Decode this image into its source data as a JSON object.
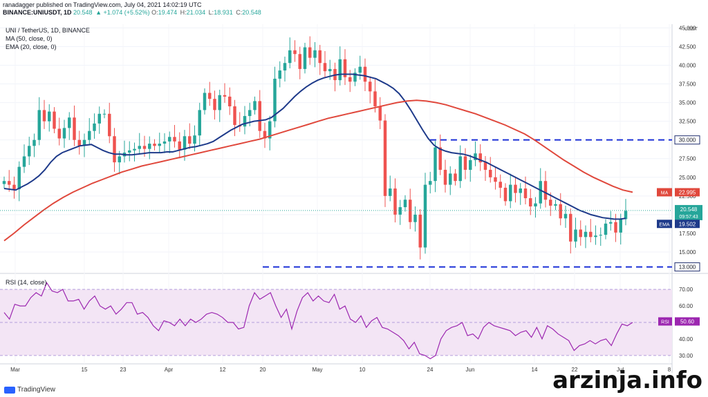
{
  "header": {
    "line1": "ranadagger published on TradingView.com, July 04, 2021 14:02:19 UTC",
    "symbol": "BINANCE:UNIUSDT, 1D",
    "last": "20.548",
    "change": "▲ +1.074 (+5.52%)",
    "o_label": "O:",
    "o": "19.474",
    "h_label": "H:",
    "h": "21.034",
    "l_label": "L:",
    "l": "18.931",
    "c_label": "C:",
    "c": "20.548"
  },
  "legend": {
    "title": "UNI / TetherUS, 1D, BINANCE",
    "ma": "MA (50, close, 0)",
    "ema": "EMA (20, close, 0)",
    "rsi": "RSI (14, close)"
  },
  "footer": {
    "tradingview": "TradingView",
    "watermark": "arzinja.info"
  },
  "colors": {
    "up": "#26a69a",
    "down": "#ef5350",
    "ema": "#1e3a8a",
    "ma": "#e0483c",
    "level": "#1a2fd6",
    "rsi": "#9c27b0",
    "rsi_band": "#f3e5f5"
  },
  "chart_data": [
    {
      "type": "candlestick",
      "title": "UNI / TetherUS, 1D, BINANCE",
      "currency_label": "USDT",
      "yticks": [
        15.0,
        17.5,
        20.0,
        22.5,
        25.0,
        27.5,
        30.0,
        32.5,
        35.0,
        37.5,
        40.0,
        42.5,
        45.0
      ],
      "ylim": [
        12.5,
        45.5
      ],
      "xticks": [
        "Mar",
        "15",
        "23",
        "Apr",
        "12",
        "20",
        "May",
        "10",
        "24",
        "Jun",
        "14",
        "22",
        "Jul",
        "8"
      ],
      "close": [
        24.5,
        24.0,
        23.4,
        26.4,
        27.8,
        29.2,
        30.0,
        34.0,
        32.5,
        33.8,
        31.5,
        30.2,
        31.6,
        33.0,
        30.0,
        29.2,
        30.0,
        31.2,
        32.2,
        33.5,
        33.5,
        30.5,
        27.0,
        27.8,
        28.3,
        28.6,
        28.8,
        29.2,
        28.8,
        29.5,
        29.2,
        29.5,
        29.8,
        30.4,
        29.8,
        28.7,
        30.5,
        29.5,
        30.6,
        34.0,
        36.3,
        35.5,
        34.0,
        36.0,
        35.8,
        34.5,
        32.0,
        31.8,
        33.2,
        34.0,
        35.2,
        31.2,
        30.2,
        32.5,
        38.2,
        39.3,
        40.3,
        42.0,
        41.5,
        39.5,
        42.4,
        41.0,
        42.0,
        40.3,
        39.2,
        39.5,
        38.0,
        40.8,
        38.4,
        37.8,
        39.0,
        39.8,
        37.8,
        36.5,
        34.5,
        32.6,
        22.5,
        23.5,
        20.0,
        21.0,
        22.0,
        19.0,
        20.0,
        15.6,
        24.0,
        24.5,
        29.0,
        26.0,
        24.0,
        25.5,
        24.5,
        27.8,
        26.0,
        27.3,
        28.2,
        27.0,
        26.0,
        25.0,
        24.4,
        23.6,
        21.8,
        24.0,
        22.9,
        23.5,
        22.2,
        21.1,
        21.5,
        24.5,
        22.0,
        21.2,
        21.4,
        19.5,
        20.1,
        16.4,
        18.0,
        17.0,
        17.7,
        17.0,
        17.2,
        17.3,
        18.8,
        19.0,
        17.6,
        19.4,
        20.5
      ],
      "ema": [
        23.5,
        23.4,
        23.3,
        23.7,
        24.1,
        24.6,
        25.2,
        26.0,
        27.0,
        27.8,
        28.3,
        28.6,
        28.9,
        29.2,
        29.3,
        29.4,
        29.0,
        28.6,
        28.3,
        28.1,
        28.1,
        28.0,
        28.0,
        28.1,
        28.2,
        28.3,
        28.3,
        28.3,
        28.4,
        28.4,
        28.6,
        28.8,
        29.0,
        29.1,
        29.3,
        29.5,
        29.8,
        30.3,
        30.8,
        31.3,
        31.7,
        32.1,
        32.3,
        32.5,
        32.6,
        32.7,
        33.0,
        33.6,
        34.2,
        35.0,
        35.8,
        36.5,
        37.1,
        37.6,
        38.0,
        38.3,
        38.5,
        38.7,
        38.8,
        38.8,
        38.8,
        38.7,
        38.6,
        38.4,
        38.2,
        37.8,
        37.4,
        36.9,
        36.2,
        35.2,
        34.0,
        32.7,
        31.4,
        30.2,
        29.3,
        28.8,
        28.5,
        28.3,
        28.2,
        28.1,
        27.9,
        27.6,
        27.3,
        27.0,
        26.6,
        26.2,
        25.8,
        25.4,
        25.0,
        24.6,
        24.2,
        23.8,
        23.4,
        23.0,
        22.6,
        22.2,
        21.8,
        21.4,
        21.0,
        20.6,
        20.3,
        20.0,
        19.8,
        19.6,
        19.5,
        19.4,
        19.4,
        19.5
      ],
      "ma": [
        16.5,
        17.5,
        18.6,
        19.6,
        20.6,
        21.5,
        22.3,
        23.0,
        23.6,
        24.2,
        24.7,
        25.2,
        25.7,
        26.1,
        26.5,
        26.8,
        27.1,
        27.4,
        27.7,
        28.0,
        28.3,
        28.6,
        28.9,
        29.2,
        29.5,
        29.8,
        30.1,
        30.5,
        30.9,
        31.3,
        31.7,
        32.1,
        32.5,
        32.9,
        33.2,
        33.5,
        33.8,
        34.1,
        34.4,
        34.7,
        35.0,
        35.2,
        35.3,
        35.2,
        35.0,
        34.7,
        34.3,
        33.9,
        33.5,
        33.0,
        32.5,
        32.0,
        31.4,
        30.8,
        30.0,
        29.1,
        28.2,
        27.3,
        26.5,
        25.7,
        25.0,
        24.4,
        23.8,
        23.3,
        23.0
      ],
      "levels": [
        {
          "value": 30.0,
          "label": "30.000"
        },
        {
          "value": 13.0,
          "label": "13.000"
        }
      ],
      "price_labels": [
        {
          "name": "MA",
          "value": "22.995"
        },
        {
          "name": "",
          "value": "20.548",
          "sub": "09:57:43"
        },
        {
          "name": "EMA",
          "value": "19.502"
        }
      ]
    },
    {
      "type": "line",
      "title": "RSI (14, close)",
      "yticks": [
        30.0,
        40.0,
        50.0,
        60.0,
        70.0
      ],
      "ylim": [
        27,
        78
      ],
      "band": [
        30,
        70
      ],
      "label": {
        "name": "RSI",
        "value": "50.60"
      },
      "values": [
        56,
        52,
        61,
        60,
        60,
        65,
        68,
        66,
        74,
        69,
        68,
        70,
        63,
        63,
        64,
        58,
        63,
        66,
        60,
        58,
        60,
        55,
        58,
        62,
        62,
        55,
        56,
        53,
        48,
        45,
        51,
        50,
        48,
        52,
        48,
        52,
        50,
        52,
        55,
        56,
        55,
        53,
        50,
        50,
        46,
        47,
        60,
        68,
        64,
        66,
        68,
        60,
        53,
        58,
        46,
        57,
        65,
        68,
        63,
        66,
        63,
        62,
        67,
        58,
        60,
        52,
        50,
        54,
        47,
        51,
        53,
        47,
        46,
        44,
        42,
        39,
        34,
        38,
        31,
        30,
        28,
        30,
        40,
        45,
        47,
        48,
        50,
        42,
        43,
        40,
        47,
        50,
        48,
        47,
        46,
        45,
        42,
        44,
        45,
        41,
        47,
        40,
        48,
        46,
        43,
        41,
        39,
        33,
        36,
        37,
        39,
        37,
        39,
        40,
        36,
        43,
        49,
        48,
        50
      ]
    }
  ]
}
